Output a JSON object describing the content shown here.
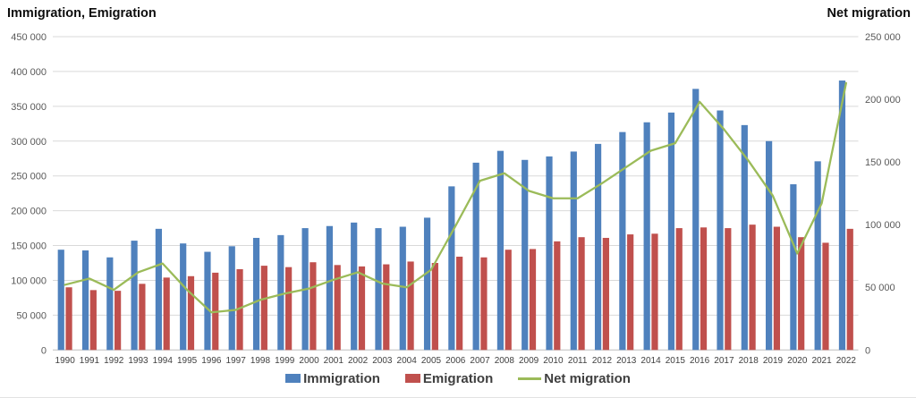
{
  "titles": {
    "left_axis_title": "Immigration, Emigration",
    "right_axis_title": "Net migration"
  },
  "palette": {
    "immigration_bar": "#4F81BD",
    "emigration_bar": "#C0504D",
    "net_migration_line": "#9BBB59",
    "gridline": "#D9D9D9",
    "axis_line": "#BFBFBF",
    "axis_tick_text": "#595959",
    "year_tick_text": "#404040",
    "legend_text": "#3F3F3F",
    "title_text": "#0D0D0D"
  },
  "chart_data": {
    "type": "combo-bar-line",
    "title": "",
    "categories": [
      "1990",
      "1991",
      "1992",
      "1993",
      "1994",
      "1995",
      "1996",
      "1997",
      "1998",
      "1999",
      "2000",
      "2001",
      "2002",
      "2003",
      "2004",
      "2005",
      "2006",
      "2007",
      "2008",
      "2009",
      "2010",
      "2011",
      "2012",
      "2013",
      "2014",
      "2015",
      "2016",
      "2017",
      "2018",
      "2019",
      "2020",
      "2021",
      "2022"
    ],
    "series": [
      {
        "name": "Immigration",
        "type": "bar",
        "axis": "left",
        "color": "#4F81BD",
        "values": [
          144000,
          143000,
          133000,
          157000,
          174000,
          153000,
          141000,
          149000,
          161000,
          165000,
          175000,
          178000,
          183000,
          175000,
          177000,
          190000,
          235000,
          269000,
          286000,
          273000,
          278000,
          285000,
          296000,
          313000,
          327000,
          341000,
          375000,
          344000,
          323000,
          300000,
          238000,
          271000,
          387000
        ]
      },
      {
        "name": "Emigration",
        "type": "bar",
        "axis": "left",
        "color": "#C0504D",
        "values": [
          90000,
          86000,
          85000,
          95000,
          104000,
          106000,
          111000,
          116000,
          121000,
          119000,
          126000,
          122000,
          120000,
          123000,
          127000,
          125000,
          134000,
          133000,
          144000,
          145000,
          156000,
          162000,
          161000,
          166000,
          167000,
          175000,
          176000,
          175000,
          180000,
          177000,
          162000,
          154000,
          174000
        ]
      },
      {
        "name": "Net migration",
        "type": "line",
        "axis": "right",
        "color": "#9BBB59",
        "values": [
          52000,
          57000,
          48000,
          62000,
          69000,
          48000,
          30000,
          32000,
          40000,
          45000,
          49000,
          56000,
          62000,
          53000,
          50000,
          64000,
          99000,
          135000,
          141000,
          127000,
          121000,
          121000,
          133000,
          146000,
          159000,
          165000,
          198000,
          176000,
          151000,
          123000,
          77000,
          117000,
          213000
        ]
      }
    ],
    "left_axis": {
      "title": "Immigration, Emigration",
      "min": 0,
      "max": 450000,
      "tick_interval": 50000,
      "tick_labels": [
        "0",
        "50 000",
        "100 000",
        "150 000",
        "200 000",
        "250 000",
        "300 000",
        "350 000",
        "400 000",
        "450 000"
      ]
    },
    "right_axis": {
      "title": "Net migration",
      "min": 0,
      "max": 250000,
      "tick_interval": 50000,
      "tick_labels": [
        "0",
        "50 000",
        "100 000",
        "150 000",
        "200 000",
        "250 000"
      ]
    },
    "grid": true,
    "legend_position": "bottom"
  }
}
